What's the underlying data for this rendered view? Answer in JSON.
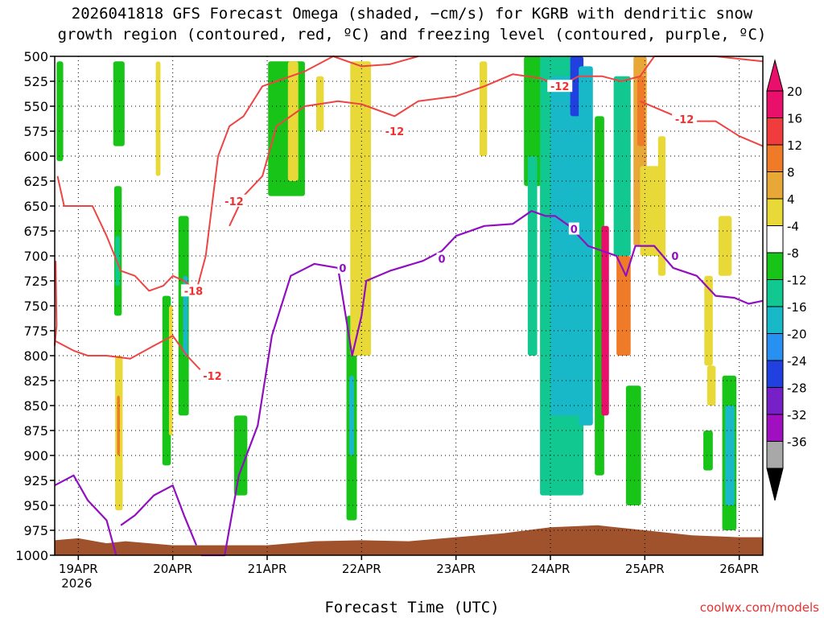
{
  "chart_data": {
    "type": "heatmap",
    "title": "2026041818 GFS Forecast Omega (shaded, −cm/s) for KGRB with dendritic snow",
    "subtitle": "growth region (contoured, red, ºC) and freezing level (contoured, purple, ºC)",
    "xlabel": "Forecast Time (UTC)",
    "ylabel": "",
    "y_ticks": [
      500,
      525,
      550,
      575,
      600,
      625,
      650,
      675,
      700,
      725,
      750,
      775,
      800,
      825,
      850,
      875,
      900,
      925,
      950,
      975,
      1000
    ],
    "ylim": [
      1000,
      500
    ],
    "x_ticks": [
      "19APR",
      "20APR",
      "21APR",
      "22APR",
      "23APR",
      "24APR",
      "25APR",
      "26APR"
    ],
    "x_year": "2026",
    "xlim_days": [
      18.75,
      26.25
    ],
    "grid": "dotted",
    "colorbar": {
      "ticks": [
        20,
        16,
        12,
        8,
        4,
        -4,
        -8,
        -12,
        -16,
        -20,
        -24,
        -28,
        -32,
        -36
      ],
      "colors": [
        "#e8106a",
        "#f03c3c",
        "#ef7a28",
        "#e8a838",
        "#e8d838",
        "#ffffff",
        "#18c418",
        "#10c890",
        "#18b8c8",
        "#2890f0",
        "#2040e0",
        "#7820c8",
        "#a010c0",
        "#a8a8a8"
      ],
      "extend_top_color": "#e8106a",
      "extend_bottom_color": "#000000"
    },
    "shaded_regions": [
      {
        "time": [
          18.77,
          18.84
        ],
        "p": [
          505,
          605
        ],
        "value": -6
      },
      {
        "time": [
          19.37,
          19.49
        ],
        "p": [
          505,
          590
        ],
        "value": -6
      },
      {
        "time": [
          19.38,
          19.46
        ],
        "p": [
          630,
          760
        ],
        "value": -8
      },
      {
        "time": [
          19.39,
          19.44
        ],
        "p": [
          680,
          730
        ],
        "value": -12
      },
      {
        "time": [
          19.39,
          19.47
        ],
        "p": [
          800,
          955
        ],
        "value": 6
      },
      {
        "time": [
          19.41,
          19.44
        ],
        "p": [
          840,
          900
        ],
        "value": 12
      },
      {
        "time": [
          20.06,
          20.17
        ],
        "p": [
          660,
          860
        ],
        "value": -8
      },
      {
        "time": [
          20.11,
          20.16
        ],
        "p": [
          720,
          800
        ],
        "value": -13
      },
      {
        "time": [
          19.89,
          19.98
        ],
        "p": [
          740,
          910
        ],
        "value": -7
      },
      {
        "time": [
          19.82,
          19.87
        ],
        "p": [
          505,
          620
        ],
        "value": 6
      },
      {
        "time": [
          19.96,
          20.0
        ],
        "p": [
          750,
          880
        ],
        "value": 6
      },
      {
        "time": [
          20.65,
          20.79
        ],
        "p": [
          860,
          940
        ],
        "value": -7
      },
      {
        "time": [
          21.01,
          21.4
        ],
        "p": [
          505,
          640
        ],
        "value": -7
      },
      {
        "time": [
          21.22,
          21.33
        ],
        "p": [
          505,
          625
        ],
        "value": 6
      },
      {
        "time": [
          21.52,
          21.6
        ],
        "p": [
          520,
          575
        ],
        "value": 6
      },
      {
        "time": [
          21.84,
          21.95
        ],
        "p": [
          760,
          965
        ],
        "value": -8
      },
      {
        "time": [
          21.87,
          21.92
        ],
        "p": [
          820,
          900
        ],
        "value": -14
      },
      {
        "time": [
          21.88,
          22.1
        ],
        "p": [
          505,
          800
        ],
        "value": 6
      },
      {
        "time": [
          23.25,
          23.33
        ],
        "p": [
          505,
          600
        ],
        "value": 5
      },
      {
        "time": [
          23.72,
          23.9
        ],
        "p": [
          500,
          630
        ],
        "value": -8
      },
      {
        "time": [
          23.76,
          23.86
        ],
        "p": [
          600,
          800
        ],
        "value": -12
      },
      {
        "time": [
          23.89,
          24.35
        ],
        "p": [
          500,
          940
        ],
        "value": -9
      },
      {
        "time": [
          24.0,
          24.3
        ],
        "p": [
          520,
          860
        ],
        "value": -14
      },
      {
        "time": [
          24.21,
          24.35
        ],
        "p": [
          500,
          560
        ],
        "value": -22
      },
      {
        "time": [
          24.3,
          24.45
        ],
        "p": [
          510,
          870
        ],
        "value": -13
      },
      {
        "time": [
          24.47,
          24.57
        ],
        "p": [
          560,
          920
        ],
        "value": -7
      },
      {
        "time": [
          24.54,
          24.62
        ],
        "p": [
          670,
          860
        ],
        "value": 20
      },
      {
        "time": [
          24.67,
          24.85
        ],
        "p": [
          520,
          700
        ],
        "value": -9
      },
      {
        "time": [
          24.88,
          25.02
        ],
        "p": [
          500,
          690
        ],
        "value": 10
      },
      {
        "time": [
          24.92,
          25.0
        ],
        "p": [
          520,
          590
        ],
        "value": 14
      },
      {
        "time": [
          24.95,
          25.2
        ],
        "p": [
          610,
          700
        ],
        "value": 6
      },
      {
        "time": [
          25.14,
          25.22
        ],
        "p": [
          580,
          720
        ],
        "value": 5
      },
      {
        "time": [
          24.7,
          24.85
        ],
        "p": [
          700,
          800
        ],
        "value": 12
      },
      {
        "time": [
          24.8,
          24.96
        ],
        "p": [
          830,
          950
        ],
        "value": -7
      },
      {
        "time": [
          25.63,
          25.72
        ],
        "p": [
          720,
          810
        ],
        "value": 5
      },
      {
        "time": [
          25.78,
          25.92
        ],
        "p": [
          660,
          720
        ],
        "value": 6
      },
      {
        "time": [
          25.82,
          25.97
        ],
        "p": [
          820,
          975
        ],
        "value": -8
      },
      {
        "time": [
          25.85,
          25.95
        ],
        "p": [
          850,
          950
        ],
        "value": -13
      },
      {
        "time": [
          25.62,
          25.72
        ],
        "p": [
          875,
          915
        ],
        "value": -7
      },
      {
        "time": [
          25.66,
          25.75
        ],
        "p": [
          810,
          850
        ],
        "value": 5
      }
    ],
    "contours_red_minus12": [
      [
        [
          18.76,
          705
        ],
        [
          18.77,
          770
        ],
        [
          18.75,
          790
        ]
      ],
      [
        [
          18.75,
          785
        ],
        [
          18.95,
          795
        ],
        [
          19.1,
          800
        ],
        [
          19.3,
          800
        ],
        [
          19.55,
          803
        ],
        [
          19.8,
          790
        ],
        [
          20.0,
          780
        ],
        [
          20.15,
          800
        ],
        [
          20.3,
          815
        ],
        [
          20.45,
          818
        ]
      ],
      [
        [
          18.78,
          620
        ],
        [
          18.85,
          650
        ],
        [
          19.0,
          650
        ],
        [
          19.15,
          650
        ],
        [
          19.3,
          680
        ],
        [
          19.45,
          715
        ],
        [
          19.6,
          720
        ],
        [
          19.75,
          735
        ],
        [
          19.9,
          730
        ],
        [
          20.0,
          720
        ],
        [
          20.12,
          725
        ],
        [
          20.25,
          735
        ]
      ],
      [
        [
          20.25,
          735
        ],
        [
          20.35,
          700
        ],
        [
          20.48,
          600
        ],
        [
          20.6,
          570
        ],
        [
          20.75,
          560
        ],
        [
          20.95,
          530
        ],
        [
          21.1,
          525
        ],
        [
          21.4,
          515
        ],
        [
          21.7,
          500
        ],
        [
          22.0,
          510
        ],
        [
          22.3,
          508
        ],
        [
          22.6,
          500
        ]
      ],
      [
        [
          20.6,
          670
        ],
        [
          20.75,
          640
        ],
        [
          20.95,
          620
        ],
        [
          21.1,
          570
        ],
        [
          21.4,
          550
        ],
        [
          21.75,
          545
        ],
        [
          22.0,
          548
        ],
        [
          22.35,
          560
        ],
        [
          22.6,
          545
        ],
        [
          23.0,
          540
        ],
        [
          23.3,
          530
        ],
        [
          23.6,
          518
        ],
        [
          23.9,
          522
        ],
        [
          24.1,
          530
        ],
        [
          24.3,
          520
        ],
        [
          24.55,
          520
        ],
        [
          24.75,
          525
        ],
        [
          24.95,
          520
        ],
        [
          25.1,
          500
        ]
      ],
      [
        [
          25.1,
          500
        ],
        [
          25.5,
          500
        ],
        [
          25.75,
          500
        ],
        [
          26.25,
          505
        ]
      ],
      [
        [
          24.95,
          545
        ],
        [
          25.2,
          555
        ],
        [
          25.45,
          565
        ],
        [
          25.75,
          565
        ],
        [
          26.0,
          580
        ],
        [
          26.25,
          590
        ]
      ]
    ],
    "contours_purple_zero": [
      [
        [
          18.75,
          930
        ],
        [
          18.95,
          920
        ],
        [
          19.1,
          945
        ],
        [
          19.3,
          965
        ],
        [
          19.4,
          1000
        ]
      ],
      [
        [
          19.45,
          970
        ],
        [
          19.6,
          960
        ],
        [
          19.8,
          940
        ],
        [
          20.0,
          930
        ],
        [
          20.12,
          960
        ],
        [
          20.25,
          990
        ]
      ],
      [
        [
          20.3,
          1000
        ],
        [
          20.55,
          1000
        ],
        [
          20.7,
          920
        ],
        [
          20.9,
          870
        ],
        [
          21.05,
          780
        ],
        [
          21.25,
          720
        ],
        [
          21.5,
          708
        ],
        [
          21.75,
          712
        ],
        [
          21.9,
          800
        ],
        [
          22.0,
          760
        ],
        [
          22.05,
          725
        ],
        [
          22.3,
          715
        ],
        [
          22.65,
          705
        ],
        [
          22.85,
          695
        ],
        [
          23.0,
          680
        ],
        [
          23.3,
          670
        ],
        [
          23.6,
          668
        ],
        [
          23.8,
          655
        ],
        [
          23.95,
          660
        ],
        [
          24.05,
          660
        ],
        [
          24.2,
          670
        ],
        [
          24.4,
          690
        ],
        [
          24.7,
          700
        ],
        [
          24.8,
          720
        ],
        [
          24.9,
          690
        ],
        [
          25.1,
          690
        ],
        [
          25.3,
          712
        ],
        [
          25.55,
          720
        ],
        [
          25.75,
          740
        ],
        [
          25.95,
          742
        ],
        [
          26.1,
          748
        ],
        [
          26.25,
          745
        ]
      ]
    ],
    "contour_labels": [
      {
        "text": "-12",
        "t": 20.65,
        "p": 645,
        "color": "red"
      },
      {
        "text": "-18",
        "t": 20.22,
        "p": 735,
        "color": "red"
      },
      {
        "text": "-12",
        "t": 20.42,
        "p": 820,
        "color": "red"
      },
      {
        "text": "-12",
        "t": 22.35,
        "p": 575,
        "color": "red"
      },
      {
        "text": "-12",
        "t": 24.1,
        "p": 530,
        "color": "red"
      },
      {
        "text": "-12",
        "t": 25.42,
        "p": 563,
        "color": "red"
      },
      {
        "text": "0",
        "t": 21.8,
        "p": 712,
        "color": "purple"
      },
      {
        "text": "0",
        "t": 22.85,
        "p": 703,
        "color": "purple"
      },
      {
        "text": "0",
        "t": 24.25,
        "p": 673,
        "color": "purple"
      },
      {
        "text": "0",
        "t": 25.32,
        "p": 700,
        "color": "purple"
      }
    ],
    "surface_terrain_p": [
      [
        18.75,
        985
      ],
      [
        19.0,
        983
      ],
      [
        19.3,
        988
      ],
      [
        19.5,
        986
      ],
      [
        20.0,
        990
      ],
      [
        20.5,
        990
      ],
      [
        21.0,
        990
      ],
      [
        21.5,
        986
      ],
      [
        22.0,
        985
      ],
      [
        22.5,
        986
      ],
      [
        23.0,
        982
      ],
      [
        23.5,
        978
      ],
      [
        24.0,
        972
      ],
      [
        24.5,
        970
      ],
      [
        25.0,
        975
      ],
      [
        25.5,
        980
      ],
      [
        26.0,
        982
      ],
      [
        26.25,
        982
      ]
    ]
  },
  "header": {
    "title_line1": "2026041818 GFS Forecast Omega (shaded, −cm/s) for KGRB with dendritic snow",
    "title_line2": "growth region (contoured, red, ºC) and freezing level (contoured, purple, ºC)"
  },
  "footer": {
    "credit": "coolwx.com/models"
  }
}
